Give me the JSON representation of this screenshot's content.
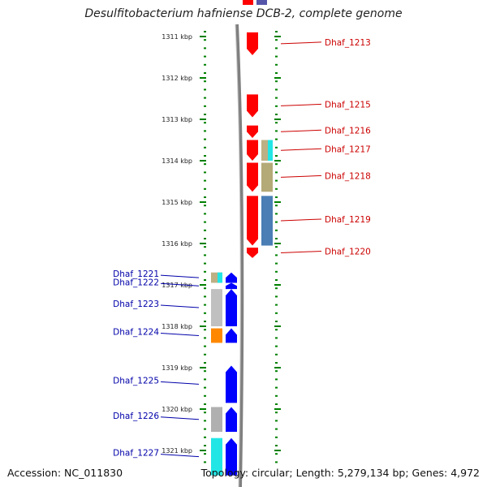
{
  "title": "Desulfitobacterium hafniense DCB-2, complete genome",
  "accession": "Accession: NC_011830",
  "topology": "Topology: circular; Length: 5,279,134 bp; Genes: 4,972",
  "colors": {
    "forward_label": "#cc0000",
    "reverse_label": "#0000aa",
    "red_gene": "#ff0000",
    "blue_gene": "#0000ff",
    "tick": "#008000",
    "backbone": "#808080"
  },
  "axis": {
    "start_kbp": 1310.5,
    "end_kbp": 1321.6,
    "ticks": [
      {
        "kbp": 1311,
        "label": "1311 kbp"
      },
      {
        "kbp": 1312,
        "label": "1312 kbp"
      },
      {
        "kbp": 1313,
        "label": "1313 kbp"
      },
      {
        "kbp": 1314,
        "label": "1314 kbp"
      },
      {
        "kbp": 1315,
        "label": "1315 kbp"
      },
      {
        "kbp": 1316,
        "label": "1316 kbp"
      },
      {
        "kbp": 1317,
        "label": "1317 kbp"
      },
      {
        "kbp": 1318,
        "label": "1318 kbp"
      },
      {
        "kbp": 1319,
        "label": "1319 kbp"
      },
      {
        "kbp": 1320,
        "label": "1320 kbp"
      },
      {
        "kbp": 1321,
        "label": "1321 kbp"
      }
    ]
  },
  "forward_genes": [
    {
      "name": "Dhaf_1213",
      "start_kbp": 1310.9,
      "end_kbp": 1311.45,
      "color": "#ff0000"
    },
    {
      "name": "Dhaf_1215",
      "start_kbp": 1312.4,
      "end_kbp": 1312.95,
      "color": "#ff0000"
    },
    {
      "name": "Dhaf_1216",
      "start_kbp": 1313.15,
      "end_kbp": 1313.45,
      "color": "#ff0000"
    },
    {
      "name": "Dhaf_1217",
      "start_kbp": 1313.5,
      "end_kbp": 1314.0,
      "color": "#ff0000"
    },
    {
      "name": "Dhaf_1218",
      "start_kbp": 1314.05,
      "end_kbp": 1314.75,
      "color": "#ff0000"
    },
    {
      "name": "Dhaf_1219",
      "start_kbp": 1314.85,
      "end_kbp": 1316.05,
      "color": "#ff0000"
    },
    {
      "name": "Dhaf_1220",
      "start_kbp": 1316.1,
      "end_kbp": 1316.35,
      "color": "#ff0000"
    }
  ],
  "reverse_genes": [
    {
      "name": "Dhaf_1221",
      "start_kbp": 1316.7,
      "end_kbp": 1316.95,
      "color": "#0000ff"
    },
    {
      "name": "Dhaf_1222",
      "start_kbp": 1316.95,
      "end_kbp": 1317.1,
      "color": "#0000ff"
    },
    {
      "name": "Dhaf_1223",
      "start_kbp": 1317.1,
      "end_kbp": 1318.0,
      "color": "#0000ff"
    },
    {
      "name": "Dhaf_1224",
      "start_kbp": 1318.05,
      "end_kbp": 1318.4,
      "color": "#0000ff"
    },
    {
      "name": "Dhaf_1225",
      "start_kbp": 1318.95,
      "end_kbp": 1319.85,
      "color": "#0000ff"
    },
    {
      "name": "Dhaf_1226",
      "start_kbp": 1319.95,
      "end_kbp": 1320.55,
      "color": "#0000ff"
    },
    {
      "name": "Dhaf_1227",
      "start_kbp": 1320.7,
      "end_kbp": 1321.6,
      "color": "#0000ff"
    }
  ],
  "annotation_blocks": [
    {
      "id": "fwd-cds-1217a",
      "start_kbp": 1313.5,
      "end_kbp": 1314.0,
      "color": "#bdb084",
      "side": "right",
      "lane": 0
    },
    {
      "id": "fwd-cds-1217b",
      "start_kbp": 1313.5,
      "end_kbp": 1314.0,
      "color": "#22e6e6",
      "side": "right",
      "lane": 1
    },
    {
      "id": "fwd-cds-1218",
      "start_kbp": 1314.05,
      "end_kbp": 1314.75,
      "color": "#b4aa78",
      "side": "right",
      "lane": 0
    },
    {
      "id": "fwd-cds-1219",
      "start_kbp": 1314.85,
      "end_kbp": 1316.05,
      "color": "#4a7eb5",
      "side": "right",
      "lane": 0
    },
    {
      "id": "rev-cds-1221a",
      "start_kbp": 1316.7,
      "end_kbp": 1316.95,
      "color": "#bdb084",
      "side": "left",
      "lane": 0
    },
    {
      "id": "rev-cds-1221b",
      "start_kbp": 1316.7,
      "end_kbp": 1316.95,
      "color": "#22e6e6",
      "side": "left",
      "lane": 1
    },
    {
      "id": "rev-cds-1223",
      "start_kbp": 1317.1,
      "end_kbp": 1318.0,
      "color": "#c0c0c0",
      "side": "left",
      "lane": 0
    },
    {
      "id": "rev-cds-1224",
      "start_kbp": 1318.05,
      "end_kbp": 1318.4,
      "color": "#ff8800",
      "side": "left",
      "lane": 0
    },
    {
      "id": "rev-cds-1226",
      "start_kbp": 1319.95,
      "end_kbp": 1320.55,
      "color": "#b0b0b0",
      "side": "left",
      "lane": 0
    },
    {
      "id": "rev-cds-1227",
      "start_kbp": 1320.7,
      "end_kbp": 1321.6,
      "color": "#22e6e6",
      "side": "left",
      "lane": 0
    }
  ]
}
